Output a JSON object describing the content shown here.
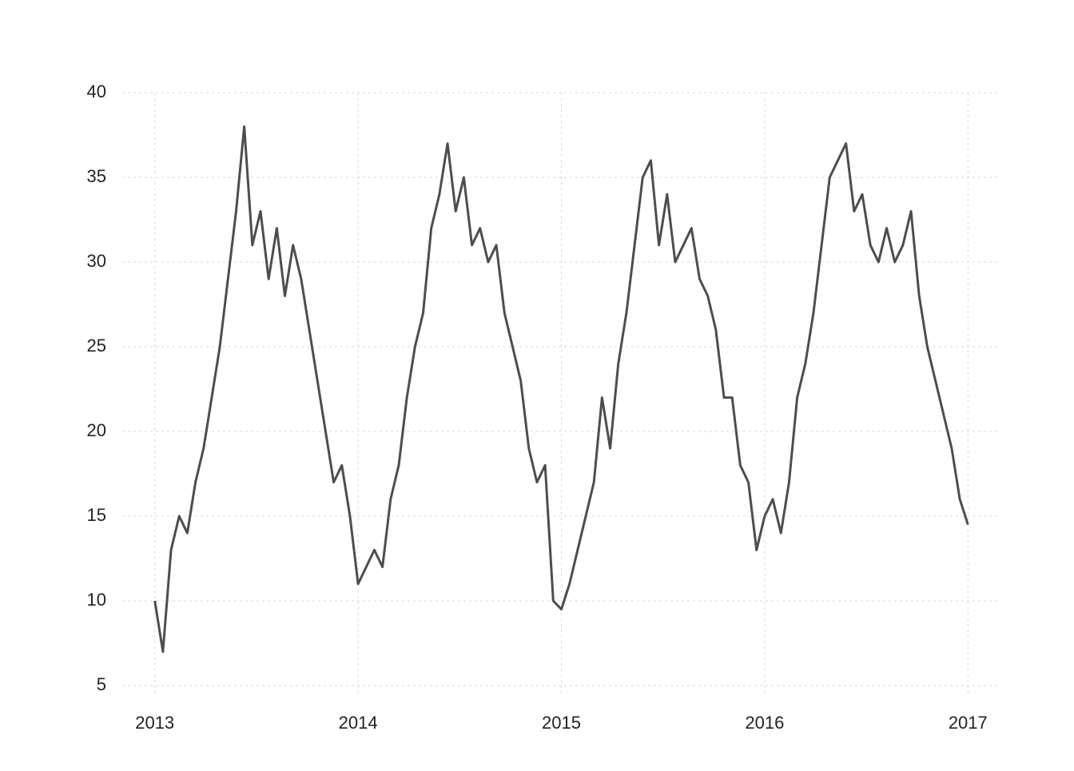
{
  "chart_data": {
    "type": "line",
    "x": [
      2013.0,
      2013.04,
      2013.08,
      2013.12,
      2013.16,
      2013.2,
      2013.24,
      2013.28,
      2013.32,
      2013.36,
      2013.4,
      2013.44,
      2013.48,
      2013.52,
      2013.56,
      2013.6,
      2013.64,
      2013.68,
      2013.72,
      2013.76,
      2013.8,
      2013.84,
      2013.88,
      2013.92,
      2013.96,
      2014.0,
      2014.04,
      2014.08,
      2014.12,
      2014.16,
      2014.2,
      2014.24,
      2014.28,
      2014.32,
      2014.36,
      2014.4,
      2014.44,
      2014.48,
      2014.52,
      2014.56,
      2014.6,
      2014.64,
      2014.68,
      2014.72,
      2014.76,
      2014.8,
      2014.84,
      2014.88,
      2014.92,
      2014.96,
      2015.0,
      2015.04,
      2015.08,
      2015.12,
      2015.16,
      2015.2,
      2015.24,
      2015.28,
      2015.32,
      2015.36,
      2015.4,
      2015.44,
      2015.48,
      2015.52,
      2015.56,
      2015.6,
      2015.64,
      2015.68,
      2015.72,
      2015.76,
      2015.8,
      2015.84,
      2015.88,
      2015.92,
      2015.96,
      2016.0,
      2016.04,
      2016.08,
      2016.12,
      2016.16,
      2016.2,
      2016.24,
      2016.28,
      2016.32,
      2016.36,
      2016.4,
      2016.44,
      2016.48,
      2016.52,
      2016.56,
      2016.6,
      2016.64,
      2016.68,
      2016.72,
      2016.76,
      2016.8,
      2016.84,
      2016.88,
      2016.92,
      2016.96,
      2017.0
    ],
    "series": [
      {
        "color": "#4d4d4d",
        "values": [
          10,
          7,
          13,
          15,
          14,
          17,
          19,
          22,
          25,
          29,
          33,
          38,
          31,
          33,
          29,
          32,
          28,
          31,
          29,
          26,
          23,
          20,
          17,
          18,
          15,
          11,
          12,
          13,
          12,
          16,
          18,
          22,
          25,
          27,
          32,
          34,
          37,
          33,
          35,
          31,
          32,
          30,
          31,
          27,
          25,
          23,
          19,
          17,
          18,
          10,
          9.5,
          11,
          13,
          15,
          17,
          22,
          19,
          24,
          27,
          31,
          35,
          36,
          31,
          34,
          30,
          31,
          32,
          29,
          28,
          26,
          22,
          22,
          18,
          17,
          13,
          15,
          16,
          14,
          17,
          22,
          24,
          27,
          31,
          35,
          36,
          37,
          33,
          34,
          31,
          30,
          32,
          30,
          31,
          33,
          28,
          25,
          23,
          21,
          19,
          16,
          14.5
        ]
      }
    ],
    "xlim": [
      2012.84,
      2017.16
    ],
    "xticks": [
      2013,
      2014,
      2015,
      2016,
      2017
    ],
    "ylim": [
      5,
      40
    ],
    "yticks": [
      5,
      10,
      15,
      20,
      25,
      30,
      35,
      40
    ],
    "grid": true
  }
}
